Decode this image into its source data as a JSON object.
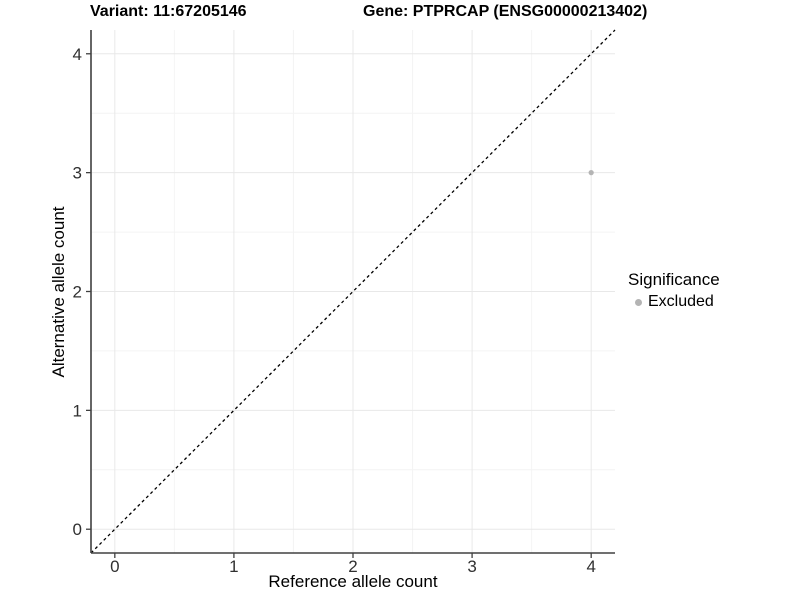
{
  "chart_data": {
    "type": "scatter",
    "title_left": "Variant: 11:67205146",
    "title_right": "Gene: PTPRCAP (ENSG00000213402)",
    "xlabel": "Reference allele count",
    "ylabel": "Alternative allele count",
    "xlim": [
      -0.2,
      4.2
    ],
    "ylim": [
      -0.2,
      4.2
    ],
    "x_ticks": [
      0,
      1,
      2,
      3,
      4
    ],
    "y_ticks": [
      0,
      1,
      2,
      3,
      4
    ],
    "x_minor_ticks": [
      0.5,
      1.5,
      2.5,
      3.5
    ],
    "y_minor_ticks": [
      0.5,
      1.5,
      2.5,
      3.5
    ],
    "grid": true,
    "identity_line": {
      "style": "dashed",
      "from_xy": [
        -0.2,
        -0.2
      ],
      "to_xy": [
        4.2,
        4.2
      ],
      "color": "#000000"
    },
    "series": [
      {
        "name": "Excluded",
        "color": "#b4b4b4",
        "points": [
          {
            "x": 4,
            "y": 3
          }
        ]
      }
    ],
    "legend": {
      "title": "Significance",
      "position": "right",
      "items": [
        {
          "label": "Excluded",
          "color": "#b4b4b4"
        }
      ]
    }
  },
  "colors": {
    "background": "#ffffff",
    "grid_major": "#e8e8e8",
    "grid_minor": "#f4f4f4",
    "axis_line": "#404040",
    "tick_mark": "#404040",
    "tick_label": "#303030",
    "point": "#b4b4b4"
  }
}
